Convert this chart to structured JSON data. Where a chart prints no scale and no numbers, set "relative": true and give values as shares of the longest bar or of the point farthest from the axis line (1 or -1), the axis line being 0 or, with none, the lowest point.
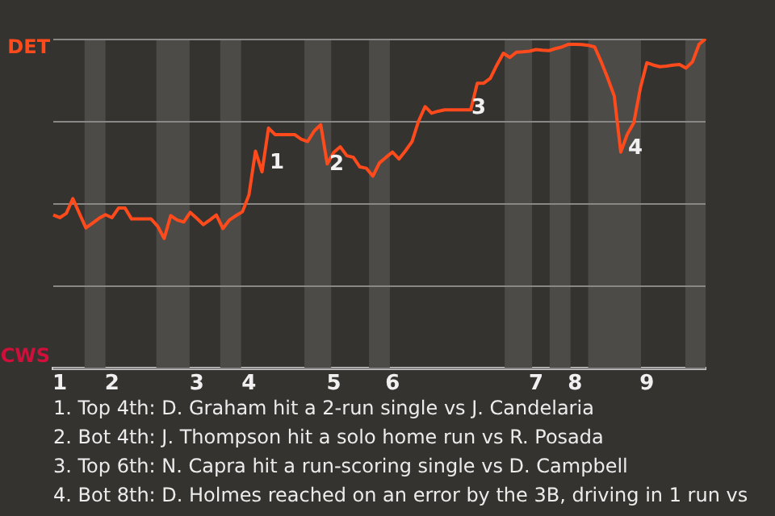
{
  "chart_data": {
    "type": "line",
    "relative": true,
    "categories": [
      null,
      "1",
      null,
      null,
      null,
      null,
      null,
      null,
      null,
      "2",
      null,
      null,
      null,
      null,
      null,
      null,
      null,
      null,
      null,
      null,
      null,
      null,
      "3",
      null,
      null,
      null,
      null,
      null,
      null,
      null,
      "4",
      null,
      null,
      null,
      null,
      null,
      null,
      null,
      null,
      null,
      null,
      null,
      null,
      "5",
      null,
      null,
      null,
      null,
      null,
      null,
      null,
      null,
      "6",
      null,
      null,
      null,
      null,
      null,
      null,
      null,
      null,
      null,
      null,
      null,
      null,
      null,
      null,
      null,
      null,
      null,
      null,
      null,
      null,
      null,
      "7",
      null,
      null,
      null,
      null,
      null,
      "8",
      null,
      null,
      null,
      null,
      null,
      null,
      null,
      null,
      null,
      null,
      "9",
      null,
      null,
      null,
      null,
      null,
      null,
      null,
      null,
      null
    ],
    "series": [
      {
        "color": "#ff4a1c",
        "values": [
          0.465,
          0.457,
          0.47,
          0.515,
          0.47,
          0.426,
          0.44,
          0.455,
          0.466,
          0.457,
          0.486,
          0.486,
          0.453,
          0.453,
          0.453,
          0.453,
          0.431,
          0.394,
          0.463,
          0.45,
          0.444,
          0.473,
          0.455,
          0.436,
          0.45,
          0.465,
          0.424,
          0.45,
          0.463,
          0.475,
          0.526,
          0.659,
          0.596,
          0.729,
          0.709,
          0.709,
          0.709,
          0.709,
          0.695,
          0.688,
          0.72,
          0.739,
          0.62,
          0.655,
          0.672,
          0.645,
          0.64,
          0.611,
          0.607,
          0.583,
          0.623,
          0.64,
          0.656,
          0.635,
          0.66,
          0.688,
          0.75,
          0.794,
          0.774,
          0.78,
          0.784,
          0.784,
          0.784,
          0.784,
          0.784,
          0.865,
          0.865,
          0.88,
          0.92,
          0.956,
          0.943,
          0.959,
          0.96,
          0.962,
          0.967,
          0.965,
          0.964,
          0.97,
          0.975,
          0.983,
          0.983,
          0.982,
          0.98,
          0.975,
          0.93,
          0.88,
          0.826,
          0.656,
          0.71,
          0.745,
          0.85,
          0.927,
          0.92,
          0.915,
          0.917,
          0.92,
          0.922,
          0.911,
          0.93,
          0.983,
          1
        ]
      }
    ],
    "grid": "y",
    "legend": false,
    "marker": "none",
    "line_style": "solid",
    "annotations": [
      "DET",
      "CWS",
      "1",
      "2",
      "3",
      "4",
      "1. Top 4th: D. Graham hit a 2-run single vs J. Candelaria",
      "2. Bot 4th: J. Thompson hit a solo home run vs R. Posada",
      "3. Top 6th: N. Capra hit a run-scoring single vs D. Campbell",
      "4. Bot 8th: D. Holmes reached on an error by the 3B, driving in 1 run vs"
    ]
  }
}
